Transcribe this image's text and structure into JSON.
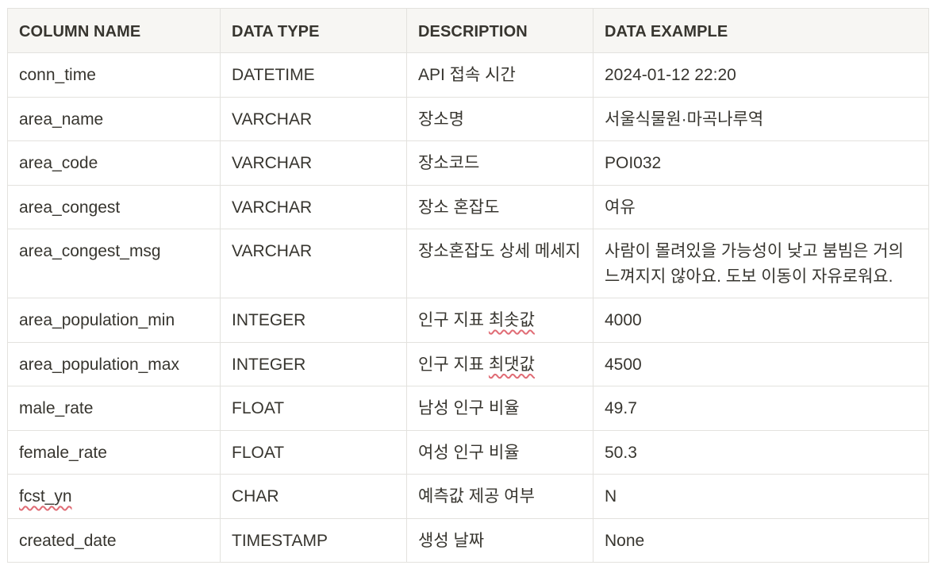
{
  "table": {
    "headers": [
      "COLUMN NAME",
      "DATA TYPE",
      "DESCRIPTION",
      "DATA EXAMPLE"
    ],
    "rows": [
      [
        "conn_time",
        "DATETIME",
        "API 접속 시간",
        "2024-01-12 22:20"
      ],
      [
        "area_name",
        "VARCHAR",
        "장소명",
        "서울식물원·마곡나루역"
      ],
      [
        "area_code",
        "VARCHAR",
        "장소코드",
        "POI032"
      ],
      [
        "area_congest",
        "VARCHAR",
        "장소 혼잡도",
        "여유"
      ],
      [
        "area_congest_msg",
        "VARCHAR",
        "장소혼잡도 상세 메세지",
        "사람이 몰려있을 가능성이 낮고 붐빔은 거의 느껴지지 않아요. 도보 이동이 자유로워요."
      ],
      [
        "area_population_min",
        "INTEGER",
        "인구 지표 최솟값",
        "4000"
      ],
      [
        "area_population_max",
        "INTEGER",
        "인구 지표 최댓값",
        "4500"
      ],
      [
        "male_rate",
        "FLOAT",
        "남성 인구 비율",
        "49.7"
      ],
      [
        "female_rate",
        "FLOAT",
        "여성 인구 비율",
        "50.3"
      ],
      [
        "fcst_yn",
        "CHAR",
        "예측값 제공 여부",
        "N"
      ],
      [
        "created_date",
        "TIMESTAMP",
        "생성 날짜",
        "None"
      ]
    ],
    "misspelled_tokens": {
      "desc_min": [
        "인구 지표 ",
        "최솟값"
      ],
      "desc_max": [
        "인구 지표 ",
        "최댓값"
      ],
      "fcst": "fcst_yn"
    },
    "colors": {
      "border": "#e3e2de",
      "header_bg": "#f7f6f3",
      "text": "#37352f",
      "spellcheck": "#e06c75"
    }
  }
}
